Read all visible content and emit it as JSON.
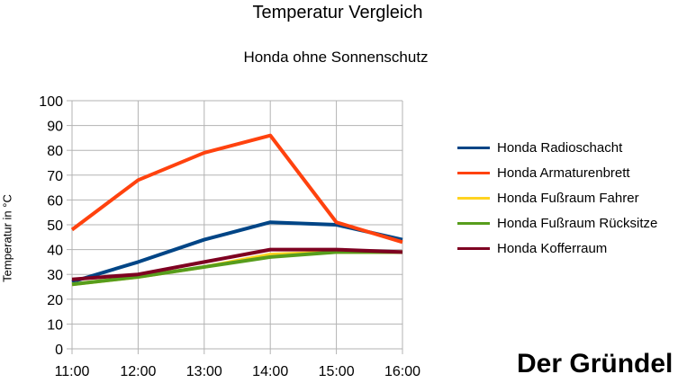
{
  "chart_data": {
    "type": "line",
    "title": "Temperatur Vergleich",
    "subtitle": "Honda ohne Sonnenschutz",
    "ylabel": "Temperatur in °C",
    "xlabel": "",
    "categories": [
      "11:00",
      "12:00",
      "13:00",
      "14:00",
      "15:00",
      "16:00"
    ],
    "ylim": [
      0,
      100
    ],
    "yticks": [
      0,
      10,
      20,
      30,
      40,
      50,
      60,
      70,
      80,
      90,
      100
    ],
    "grid": true,
    "legend_position": "right",
    "series": [
      {
        "name": "Honda Radioschacht",
        "color": "#004586",
        "values": [
          27,
          35,
          44,
          51,
          50,
          44
        ]
      },
      {
        "name": "Honda Armaturenbrett",
        "color": "#ff420e",
        "values": [
          48,
          68,
          79,
          86,
          51,
          43
        ]
      },
      {
        "name": "Honda Fußraum Fahrer",
        "color": "#ffd320",
        "values": [
          26,
          29,
          33,
          38,
          39,
          39
        ]
      },
      {
        "name": "Honda Fußraum Rücksitze",
        "color": "#579d1c",
        "values": [
          26,
          29,
          33,
          37,
          39,
          39
        ]
      },
      {
        "name": "Honda Kofferraum",
        "color": "#7e0021",
        "values": [
          28,
          30,
          35,
          40,
          40,
          39
        ]
      }
    ]
  },
  "brand": "Der Gründel"
}
